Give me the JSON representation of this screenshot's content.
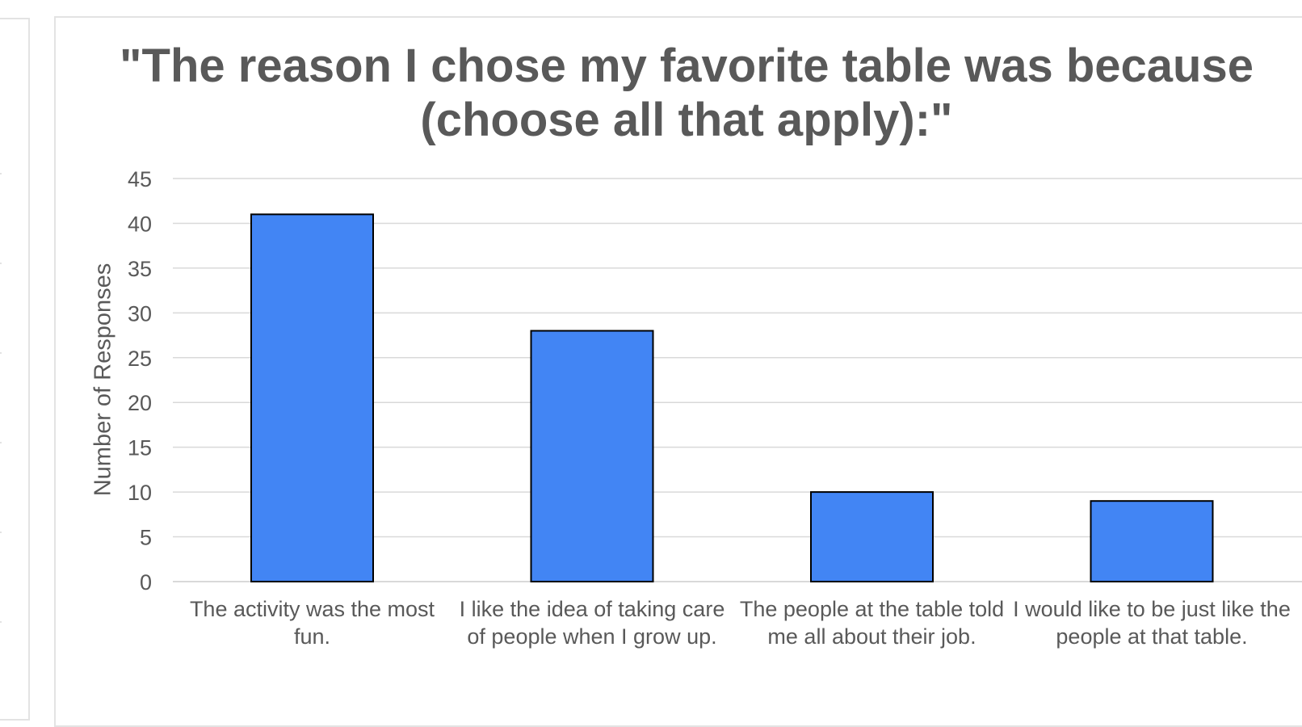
{
  "chart_data": {
    "type": "bar",
    "title": "\"The reason I chose my favorite table was because (choose all that apply):\"",
    "ylabel": "Number of Responses",
    "xlabel": "",
    "ylim": [
      0,
      45
    ],
    "yticks": [
      0,
      5,
      10,
      15,
      20,
      25,
      30,
      35,
      40,
      45
    ],
    "categories": [
      "The activity was the most fun.",
      "I like the idea of taking care of people when I grow up.",
      "The people at the table told me all about their job.",
      "I would like to be just like the people at that table."
    ],
    "values": [
      41,
      28,
      10,
      9
    ],
    "grid": true,
    "bar_color": "#4285f4",
    "bar_edge_color": "#000000",
    "grid_color": "#d9d9d9",
    "text_color": "#595959"
  }
}
